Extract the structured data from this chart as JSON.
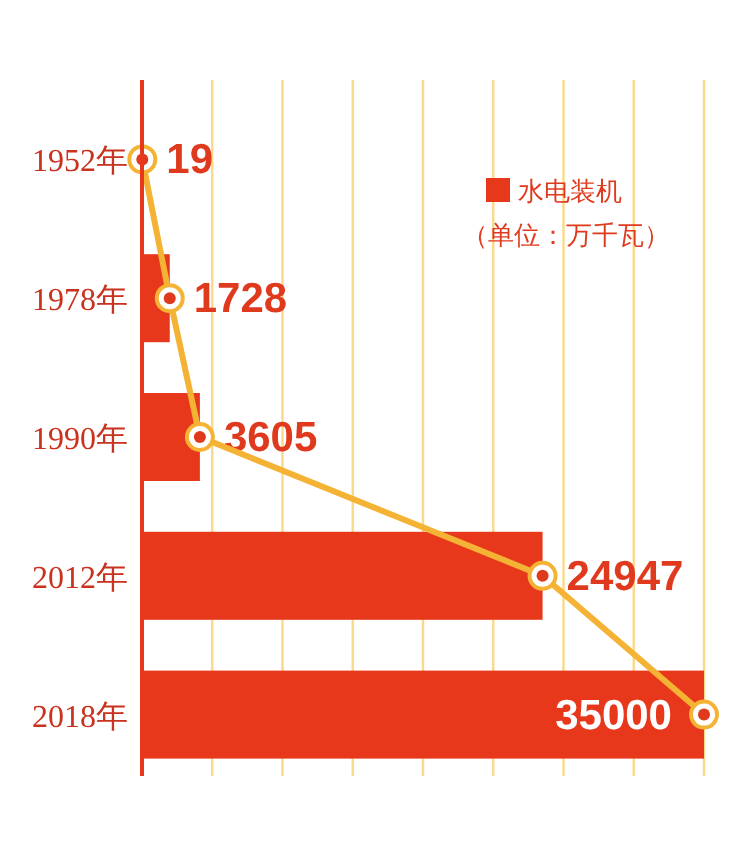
{
  "chart_data": {
    "type": "bar",
    "orientation": "horizontal",
    "categories": [
      "1952年",
      "1978年",
      "1990年",
      "2012年",
      "2018年"
    ],
    "series": [
      {
        "name": "水电装机",
        "color": "#e8381b",
        "values": [
          19,
          1728,
          3605,
          24947,
          35000
        ],
        "value_labels": [
          "19",
          "1728",
          "3605",
          "24947",
          "35000"
        ]
      },
      {
        "type": "line",
        "color": "#f5b335",
        "values": [
          19,
          1728,
          3605,
          24947,
          35000
        ]
      }
    ],
    "marker": "circle",
    "xlim": [
      0,
      35000
    ],
    "xticks": [
      {
        "value": 0,
        "label": null
      },
      {
        "value": 4375,
        "label": null
      },
      {
        "value": 8750,
        "label": null
      },
      {
        "value": 13125,
        "label": null
      },
      {
        "value": 17500,
        "label": null
      },
      {
        "value": 21875,
        "label": null
      },
      {
        "value": 26250,
        "label": null
      },
      {
        "value": 30625,
        "label": null
      },
      {
        "value": 35000,
        "label": null
      }
    ],
    "grid": "x",
    "legend": "top right",
    "annotations": [
      "（单位：万千瓦）"
    ]
  }
}
